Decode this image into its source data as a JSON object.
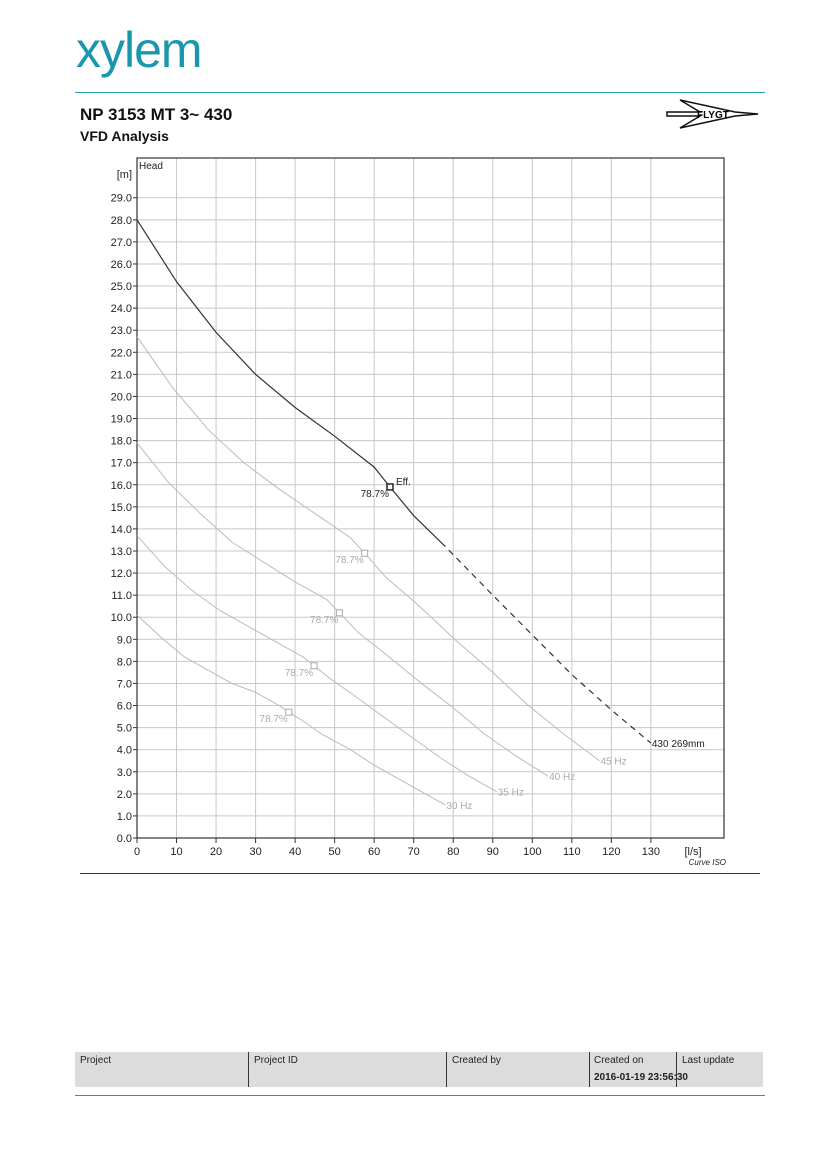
{
  "header": {
    "logo": "xylem",
    "title": "NP 3153 MT 3~ 430",
    "subtitle": "VFD Analysis",
    "brand": "FLYGT"
  },
  "chart_data": {
    "type": "line",
    "ylabel": "Head",
    "y_unit": "[m]",
    "x_unit": "[l/s]",
    "annotation": "Curve ISO",
    "xlim": [
      0,
      148.5
    ],
    "ylim": [
      0,
      30.8
    ],
    "grid": true,
    "xticks": [
      0,
      10,
      20,
      30,
      40,
      50,
      60,
      70,
      80,
      90,
      100,
      110,
      120,
      130
    ],
    "yticks": [
      {
        "value": 0,
        "label": "0.0"
      },
      {
        "value": 1,
        "label": "1.0"
      },
      {
        "value": 2,
        "label": "2.0"
      },
      {
        "value": 3,
        "label": "3.0"
      },
      {
        "value": 4,
        "label": "4.0"
      },
      {
        "value": 5,
        "label": "5.0"
      },
      {
        "value": 6,
        "label": "6.0"
      },
      {
        "value": 7,
        "label": "7.0"
      },
      {
        "value": 8,
        "label": "8.0"
      },
      {
        "value": 9,
        "label": "9.0"
      },
      {
        "value": 10,
        "label": "10.0"
      },
      {
        "value": 11,
        "label": "11.0"
      },
      {
        "value": 12,
        "label": "12.0"
      },
      {
        "value": 13,
        "label": "13.0"
      },
      {
        "value": 14,
        "label": "14.0"
      },
      {
        "value": 15,
        "label": "15.0"
      },
      {
        "value": 16,
        "label": "16.0"
      },
      {
        "value": 17,
        "label": "17.0"
      },
      {
        "value": 18,
        "label": "18.0"
      },
      {
        "value": 19,
        "label": "19.0"
      },
      {
        "value": 20,
        "label": "20.0"
      },
      {
        "value": 21,
        "label": "21.0"
      },
      {
        "value": 22,
        "label": "22.0"
      },
      {
        "value": 23,
        "label": "23.0"
      },
      {
        "value": 24,
        "label": "24.0"
      },
      {
        "value": 25,
        "label": "25.0"
      },
      {
        "value": 26,
        "label": "26.0"
      },
      {
        "value": 27,
        "label": "27.0"
      },
      {
        "value": 28,
        "label": "28.0"
      },
      {
        "value": 29,
        "label": "29.0"
      }
    ],
    "series": [
      {
        "name": "430 269mm",
        "color": "#333333",
        "dashed_after_x": 78,
        "x": [
          0,
          10,
          20,
          30,
          40,
          50,
          60,
          64,
          70,
          78,
          90,
          100,
          110,
          120,
          130
        ],
        "values": [
          28.0,
          25.2,
          22.9,
          21.0,
          19.5,
          18.2,
          16.8,
          15.9,
          14.6,
          13.2,
          11.0,
          9.2,
          7.4,
          5.8,
          4.3
        ],
        "bep": {
          "x": 64,
          "y": 15.9,
          "label": "78.7%",
          "note": "Eff."
        }
      },
      {
        "name": "45 Hz",
        "color": "#bbbbbb",
        "x": [
          0,
          9,
          18,
          27,
          36,
          45,
          54,
          57.6,
          63,
          70.2,
          81,
          90,
          99,
          108,
          117
        ],
        "values": [
          22.7,
          20.4,
          18.5,
          17.0,
          15.8,
          14.7,
          13.6,
          12.9,
          11.8,
          10.7,
          8.9,
          7.5,
          6.0,
          4.7,
          3.5
        ],
        "bep": {
          "x": 57.6,
          "y": 12.9,
          "label": "78.7%"
        }
      },
      {
        "name": "40 Hz",
        "color": "#bbbbbb",
        "x": [
          0,
          8,
          16,
          24,
          32,
          40,
          48,
          51.2,
          56,
          62.4,
          72,
          80,
          88,
          96,
          104
        ],
        "values": [
          17.9,
          16.1,
          14.7,
          13.4,
          12.5,
          11.6,
          10.8,
          10.2,
          9.3,
          8.4,
          7.0,
          5.9,
          4.7,
          3.7,
          2.8
        ],
        "bep": {
          "x": 51.2,
          "y": 10.2,
          "label": "78.7%"
        }
      },
      {
        "name": "35 Hz",
        "color": "#bbbbbb",
        "x": [
          0,
          7,
          14,
          21,
          28,
          35,
          42,
          44.8,
          49,
          54.6,
          63,
          70,
          77,
          84,
          91
        ],
        "values": [
          13.7,
          12.3,
          11.2,
          10.3,
          9.6,
          8.9,
          8.2,
          7.8,
          7.2,
          6.5,
          5.4,
          4.5,
          3.6,
          2.8,
          2.1
        ],
        "bep": {
          "x": 44.8,
          "y": 7.8,
          "label": "78.7%"
        }
      },
      {
        "name": "30 Hz",
        "color": "#bbbbbb",
        "x": [
          0,
          6,
          12,
          18,
          24,
          30,
          36,
          38.4,
          42,
          46.8,
          54,
          60,
          66,
          72,
          78
        ],
        "values": [
          10.1,
          9.1,
          8.2,
          7.6,
          7.0,
          6.6,
          6.0,
          5.7,
          5.3,
          4.7,
          4.0,
          3.3,
          2.7,
          2.1,
          1.5
        ],
        "bep": {
          "x": 38.4,
          "y": 5.7,
          "label": "78.7%"
        }
      }
    ]
  },
  "footer": {
    "columns": [
      "Project",
      "Project ID",
      "Created by",
      "Created on",
      "Last update"
    ],
    "created_on": "2016-01-19 23:56:30"
  }
}
